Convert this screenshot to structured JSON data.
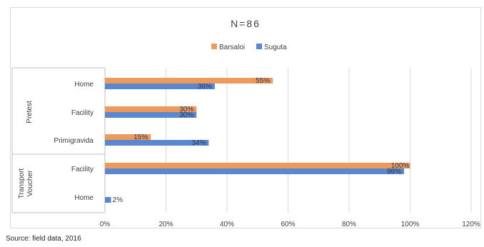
{
  "colors": {
    "barsaloi": "#ED9B5C",
    "suguta": "#5B87CF",
    "grid": "#d9d9d9",
    "text": "#404040",
    "label": "#2d3a55"
  },
  "source": "Source: field data, 2016",
  "chart_data": {
    "type": "bar",
    "orientation": "horizontal",
    "title": "N=86",
    "legend_position": "top",
    "xlim": [
      0,
      120
    ],
    "xticks": [
      "0%",
      "20%",
      "40%",
      "60%",
      "80%",
      "100%",
      "120%"
    ],
    "groups": [
      {
        "name": "Pretest",
        "categories": [
          "Home",
          "Facility",
          "Primigravida"
        ]
      },
      {
        "name": "Transport Voucher",
        "name_lines": [
          "Transport",
          "Voucher"
        ],
        "categories": [
          "Facility",
          "Home"
        ]
      }
    ],
    "series": [
      {
        "name": "Barsaloi",
        "values": [
          55,
          30,
          15,
          100,
          null
        ],
        "labels": [
          "55%",
          "30%",
          "15%",
          "100%",
          ""
        ]
      },
      {
        "name": "Suguta",
        "values": [
          36,
          30,
          34,
          98,
          2
        ],
        "labels": [
          "36%",
          "30%",
          "34%",
          "98%",
          "2%"
        ]
      }
    ]
  }
}
